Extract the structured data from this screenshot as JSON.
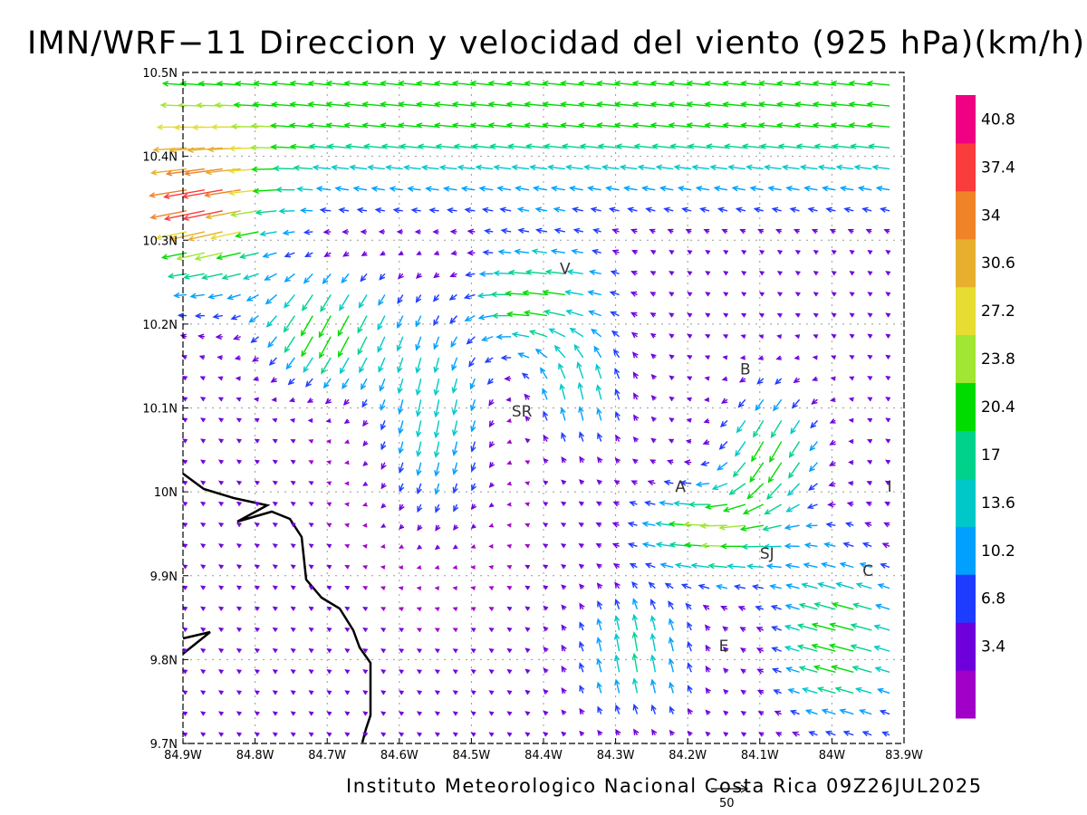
{
  "title": "IMN/WRF−11 Direccion y velocidad del viento (925 hPa)(km/h)",
  "credit": "Instituto Meteorologico Nacional Costa Rica 09Z26JUL2025",
  "chart_data": {
    "type": "vector_field",
    "variable": "wind direction and speed",
    "level": "925 hPa",
    "units": "km/h",
    "xlim": [
      -84.9,
      -83.9
    ],
    "ylim": [
      9.7,
      10.5
    ],
    "x_ticks": [
      "84.9W",
      "84.8W",
      "84.7W",
      "84.6W",
      "84.5W",
      "84.4W",
      "84.3W",
      "84.2W",
      "84.1W",
      "84W",
      "83.9W"
    ],
    "y_ticks": [
      "9.7N",
      "9.8N",
      "9.9N",
      "10N",
      "10.1N",
      "10.2N",
      "10.3N",
      "10.4N",
      "10.5N"
    ],
    "grid": "dotted",
    "reference_vector": {
      "label": "50",
      "value": 50
    },
    "colorbar": {
      "placement": "right",
      "labels": [
        "3.4",
        "6.8",
        "10.2",
        "13.6",
        "17",
        "20.4",
        "23.8",
        "27.2",
        "30.6",
        "34",
        "37.4",
        "40.8"
      ],
      "colors": [
        "#a000c8",
        "#6e00dc",
        "#1e3cff",
        "#00a0ff",
        "#00c8c8",
        "#00d28c",
        "#00dc00",
        "#a0e632",
        "#e6dc32",
        "#e6af2d",
        "#f08228",
        "#fa3c3c",
        "#f00082"
      ]
    },
    "locations": [
      {
        "label": "V",
        "lon": -84.37,
        "lat": 10.26
      },
      {
        "label": "B",
        "lon": -84.12,
        "lat": 10.14
      },
      {
        "label": "SR",
        "lon": -84.43,
        "lat": 10.09
      },
      {
        "label": "A",
        "lon": -84.21,
        "lat": 10.0
      },
      {
        "label": "I",
        "lon": -83.92,
        "lat": 10.0
      },
      {
        "label": "SJ",
        "lon": -84.09,
        "lat": 9.92
      },
      {
        "label": "C",
        "lon": -83.95,
        "lat": 9.9
      },
      {
        "label": "E",
        "lon": -84.15,
        "lat": 9.81
      }
    ]
  }
}
